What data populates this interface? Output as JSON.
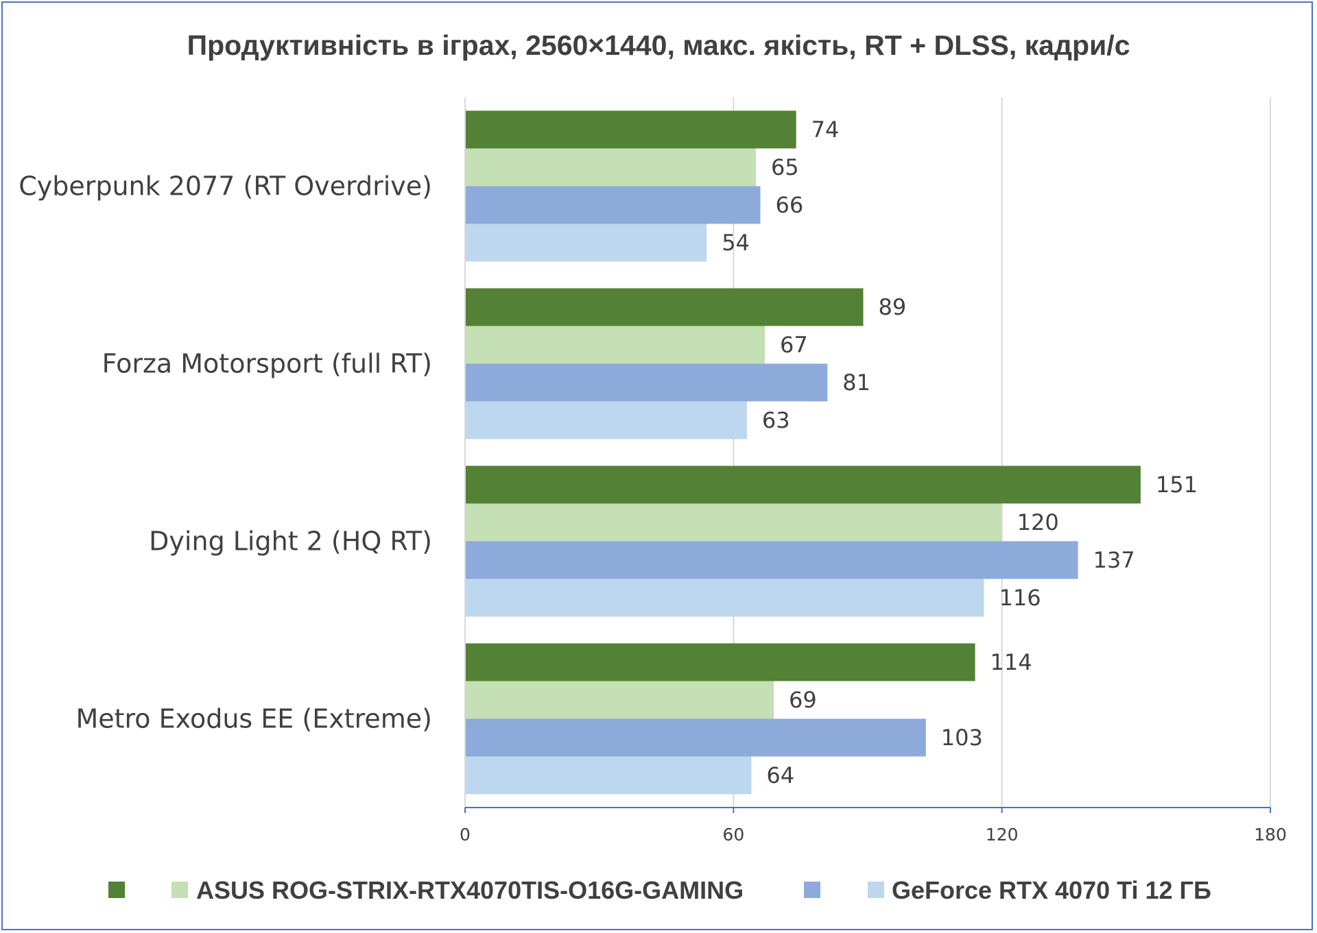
{
  "colors": {
    "dark_green": "#538135",
    "light_green": "#c5e0b4",
    "blue": "#8eaadb",
    "light_blue": "#bdd7ee",
    "grid": "#d9d9d9",
    "axis": "#4472c4",
    "border": "#4a72c4",
    "text": "#404040"
  },
  "chart_data": {
    "type": "bar",
    "orientation": "horizontal",
    "title": "Продуктивність в іграх, 2560×1440, макс. якість, RT + DLSS, кадри/с",
    "categories": [
      "Cyberpunk 2077 (RT Overdrive)",
      "Forza Motorsport (full RT)",
      "Dying Light 2 (HQ RT)",
      "Metro Exodus EE (Extreme)"
    ],
    "series": [
      {
        "name": "",
        "color": "#538135",
        "values": [
          74,
          89,
          151,
          114
        ]
      },
      {
        "name": "ASUS ROG-STRIX-RTX4070TIS-O16G-GAMING",
        "color": "#c5e0b4",
        "values": [
          65,
          67,
          120,
          69
        ]
      },
      {
        "name": "",
        "color": "#8eaadb",
        "values": [
          66,
          81,
          137,
          103
        ]
      },
      {
        "name": "GeForce RTX 4070 Ti 12 ГБ",
        "color": "#bdd7ee",
        "values": [
          54,
          63,
          116,
          64
        ]
      }
    ],
    "xlim": [
      0,
      180
    ],
    "xticks": [
      0,
      60,
      120,
      180
    ],
    "xlabel": "",
    "ylabel": "",
    "grid": true,
    "legend_position": "bottom",
    "data_labels": true
  }
}
